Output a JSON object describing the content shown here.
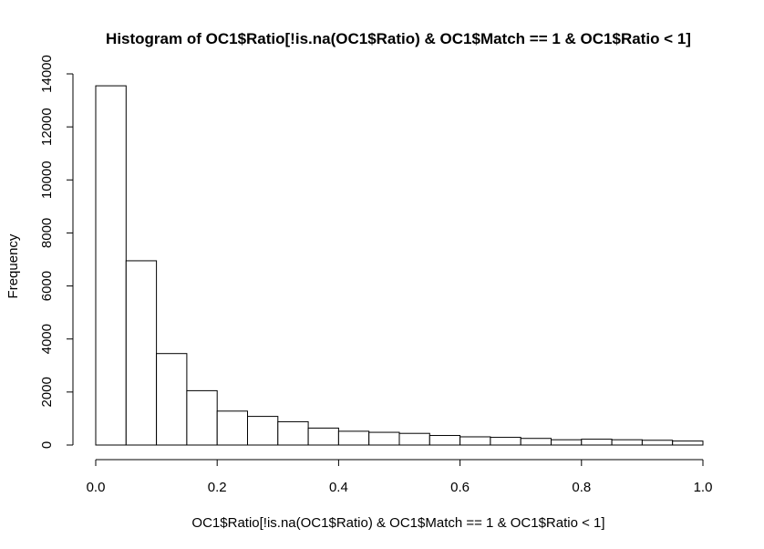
{
  "chart_data": {
    "type": "bar",
    "title": "Histogram of OC1$Ratio[!is.na(OC1$Ratio) & OC1$Match == 1 & OC1$Ratio < 1]",
    "xlabel": "OC1$Ratio[!is.na(OC1$Ratio) & OC1$Match == 1 & OC1$Ratio < 1]",
    "ylabel": "Frequency",
    "xlim": [
      0,
      1
    ],
    "ylim": [
      0,
      14000
    ],
    "x_ticks": [
      "0.0",
      "0.2",
      "0.4",
      "0.6",
      "0.8",
      "1.0"
    ],
    "x_tick_values": [
      0,
      0.2,
      0.4,
      0.6,
      0.8,
      1.0
    ],
    "y_ticks": [
      "0",
      "2000",
      "4000",
      "6000",
      "8000",
      "10000",
      "12000",
      "14000"
    ],
    "y_tick_values": [
      0,
      2000,
      4000,
      6000,
      8000,
      10000,
      12000,
      14000
    ],
    "bins": [
      {
        "x0": 0.0,
        "x1": 0.05,
        "count": 13550
      },
      {
        "x0": 0.05,
        "x1": 0.1,
        "count": 6950
      },
      {
        "x0": 0.1,
        "x1": 0.15,
        "count": 3450
      },
      {
        "x0": 0.15,
        "x1": 0.2,
        "count": 2050
      },
      {
        "x0": 0.2,
        "x1": 0.25,
        "count": 1280
      },
      {
        "x0": 0.25,
        "x1": 0.3,
        "count": 1080
      },
      {
        "x0": 0.3,
        "x1": 0.35,
        "count": 880
      },
      {
        "x0": 0.35,
        "x1": 0.4,
        "count": 640
      },
      {
        "x0": 0.4,
        "x1": 0.45,
        "count": 520
      },
      {
        "x0": 0.45,
        "x1": 0.5,
        "count": 480
      },
      {
        "x0": 0.5,
        "x1": 0.55,
        "count": 440
      },
      {
        "x0": 0.55,
        "x1": 0.6,
        "count": 360
      },
      {
        "x0": 0.6,
        "x1": 0.65,
        "count": 310
      },
      {
        "x0": 0.65,
        "x1": 0.7,
        "count": 290
      },
      {
        "x0": 0.7,
        "x1": 0.75,
        "count": 250
      },
      {
        "x0": 0.75,
        "x1": 0.8,
        "count": 200
      },
      {
        "x0": 0.8,
        "x1": 0.85,
        "count": 220
      },
      {
        "x0": 0.85,
        "x1": 0.9,
        "count": 200
      },
      {
        "x0": 0.9,
        "x1": 0.95,
        "count": 180
      },
      {
        "x0": 0.95,
        "x1": 1.0,
        "count": 150
      }
    ],
    "grid": false
  }
}
